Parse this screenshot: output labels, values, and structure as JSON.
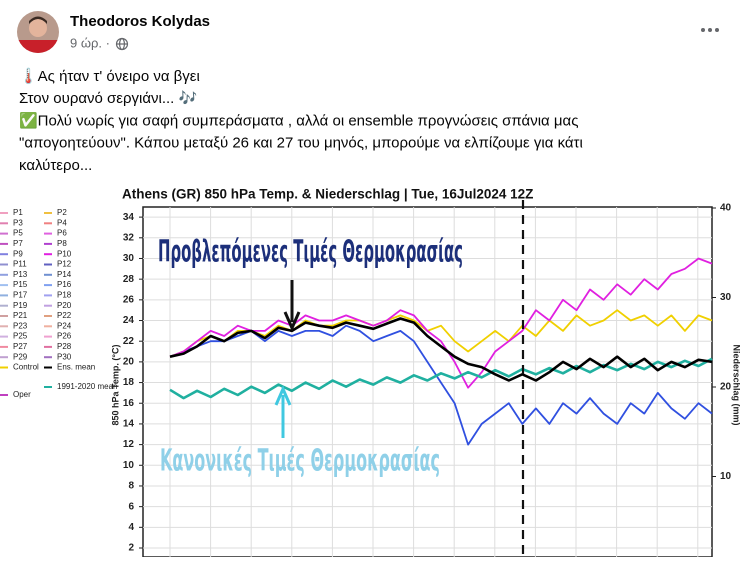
{
  "post": {
    "author": "Theodoros Kolydas",
    "time": "9 ώρ. ·",
    "lines": [
      "🌡️Ας ήταν τ' όνειρο να βγει",
      "Στον ουρανό σεργιάνι... 🎶",
      "✅Πολύ νωρίς για σαφή συμπεράσματα , αλλά οι ensemble προγνώσεις σπάνια μας",
      "\"απογοητεύουν\". Κάπου μεταξύ 26 και 27 του μηνός,  μπορούμε να ελπίζουμε για κάτι",
      "καλύτερο..."
    ]
  },
  "chart_data": {
    "type": "line",
    "title": "Athens  (GR)  850 hPa Temp. & Niederschlag | Tue, 16Jul2024 12Z",
    "y_label": "850 hPa Temp. (°C)",
    "y2_label": "Niederschlag (mm)",
    "ylim": [
      0,
      35
    ],
    "yticks": [
      2,
      4,
      6,
      8,
      10,
      12,
      14,
      16,
      18,
      20,
      22,
      24,
      26,
      28,
      30,
      32,
      34
    ],
    "y2lim": [
      0,
      40
    ],
    "y2ticks": [
      10,
      20,
      30,
      40
    ],
    "grid": true,
    "annotations": [
      "Προβλεπόμενες Τιμές Θερμοκρασίας",
      "Κανονικές Τιμές Θερμοκρασίας"
    ],
    "legend": [
      {
        "name": "P1",
        "color": "#f0a0c0"
      },
      {
        "name": "P2",
        "color": "#f0c040"
      },
      {
        "name": "P3",
        "color": "#e080b0"
      },
      {
        "name": "P4",
        "color": "#f08080"
      },
      {
        "name": "P5",
        "color": "#d070d0"
      },
      {
        "name": "P6",
        "color": "#e060e0"
      },
      {
        "name": "P7",
        "color": "#c050c0"
      },
      {
        "name": "P8",
        "color": "#b040d0"
      },
      {
        "name": "P9",
        "color": "#8080e0"
      },
      {
        "name": "P10",
        "color": "#e020e0"
      },
      {
        "name": "P11",
        "color": "#9090d0"
      },
      {
        "name": "P12",
        "color": "#6060c0"
      },
      {
        "name": "P13",
        "color": "#90a0e0"
      },
      {
        "name": "P14",
        "color": "#7090d0"
      },
      {
        "name": "P15",
        "color": "#a0c0f0"
      },
      {
        "name": "P16",
        "color": "#80a0f0"
      },
      {
        "name": "P17",
        "color": "#90b0e0"
      },
      {
        "name": "P18",
        "color": "#a0a0f0"
      },
      {
        "name": "P19",
        "color": "#b0b0d0"
      },
      {
        "name": "P20",
        "color": "#c0a0e0"
      },
      {
        "name": "P21",
        "color": "#d0a0a0"
      },
      {
        "name": "P22",
        "color": "#e0a080"
      },
      {
        "name": "P23",
        "color": "#e0b0b0"
      },
      {
        "name": "P24",
        "color": "#f0b0a0"
      },
      {
        "name": "P25",
        "color": "#d0b0e0"
      },
      {
        "name": "P26",
        "color": "#f0a0d0"
      },
      {
        "name": "P27",
        "color": "#f08aa0"
      },
      {
        "name": "P28",
        "color": "#e070a0"
      },
      {
        "name": "P29",
        "color": "#c0a0d0"
      },
      {
        "name": "P30",
        "color": "#a070c0"
      },
      {
        "name": "Control",
        "color": "#f0d000"
      },
      {
        "name": "Ens. mean",
        "color": "#000000"
      },
      {
        "name": "1991-2020 mean",
        "color": "#20b0a0"
      },
      {
        "name": "Oper",
        "color": "#c040c0"
      }
    ],
    "series": [
      {
        "color": "#3050e0",
        "values": [
          20.5,
          21,
          21.5,
          22,
          22,
          22.5,
          23,
          22,
          23,
          22.5,
          23,
          23,
          22.5,
          23.5,
          23,
          22,
          22.5,
          23,
          22,
          20,
          18,
          16,
          12,
          14,
          15,
          16,
          14,
          15.5,
          14,
          16,
          15,
          16.5,
          15,
          14,
          16,
          15,
          17,
          15.5,
          14.5,
          16,
          15
        ]
      },
      {
        "color": "#f0d000",
        "values": [
          20.5,
          21,
          22,
          22.5,
          22,
          23,
          23,
          22.5,
          23.5,
          23,
          24,
          23.5,
          23.5,
          24,
          24,
          23.5,
          24,
          24.5,
          24,
          23,
          23.5,
          22,
          21,
          22,
          23,
          22,
          23.5,
          22.5,
          24,
          23,
          24.5,
          23.5,
          24,
          25,
          24,
          24.5,
          23.5,
          24.5,
          23,
          24.5,
          24
        ]
      },
      {
        "color": "#e020e0",
        "values": [
          20.5,
          21,
          22,
          23,
          22.5,
          23.5,
          23,
          23,
          24,
          23.5,
          24.5,
          24,
          24,
          24.5,
          24,
          23.5,
          24,
          25,
          24.5,
          23,
          22,
          20,
          17.5,
          19,
          21,
          22,
          23,
          25,
          24,
          26,
          25,
          27,
          26,
          27.5,
          26.5,
          28,
          27,
          28.5,
          29,
          30,
          29.5
        ]
      },
      {
        "color": "#20b0a0",
        "values": [
          17.3,
          16.5,
          17.2,
          16.6,
          17.4,
          16.8,
          17.6,
          17,
          17.8,
          17.2,
          18,
          17.4,
          18.2,
          17.6,
          18.3,
          17.8,
          18.5,
          18,
          18.7,
          18.2,
          18.9,
          18.4,
          19,
          18.5,
          19.2,
          18.6,
          19.3,
          18.8,
          19.4,
          18.9,
          19.6,
          19,
          19.7,
          19.2,
          19.8,
          19.3,
          20,
          19.5,
          20.1,
          19.6,
          20.3
        ]
      },
      {
        "color": "#000000",
        "values": [
          20.5,
          20.8,
          21.5,
          22.5,
          22,
          22.8,
          23,
          22.3,
          23.3,
          23,
          23.8,
          23.5,
          23.3,
          23.8,
          23.5,
          23.2,
          23.7,
          24.2,
          23.8,
          22.5,
          21.5,
          20.5,
          19.8,
          19.5,
          18.8,
          18.2,
          18.8,
          18.2,
          19,
          20,
          19.3,
          20.3,
          19.5,
          20.5,
          19.5,
          20.3,
          19.2,
          20,
          19.5,
          20.2,
          20
        ]
      }
    ]
  }
}
